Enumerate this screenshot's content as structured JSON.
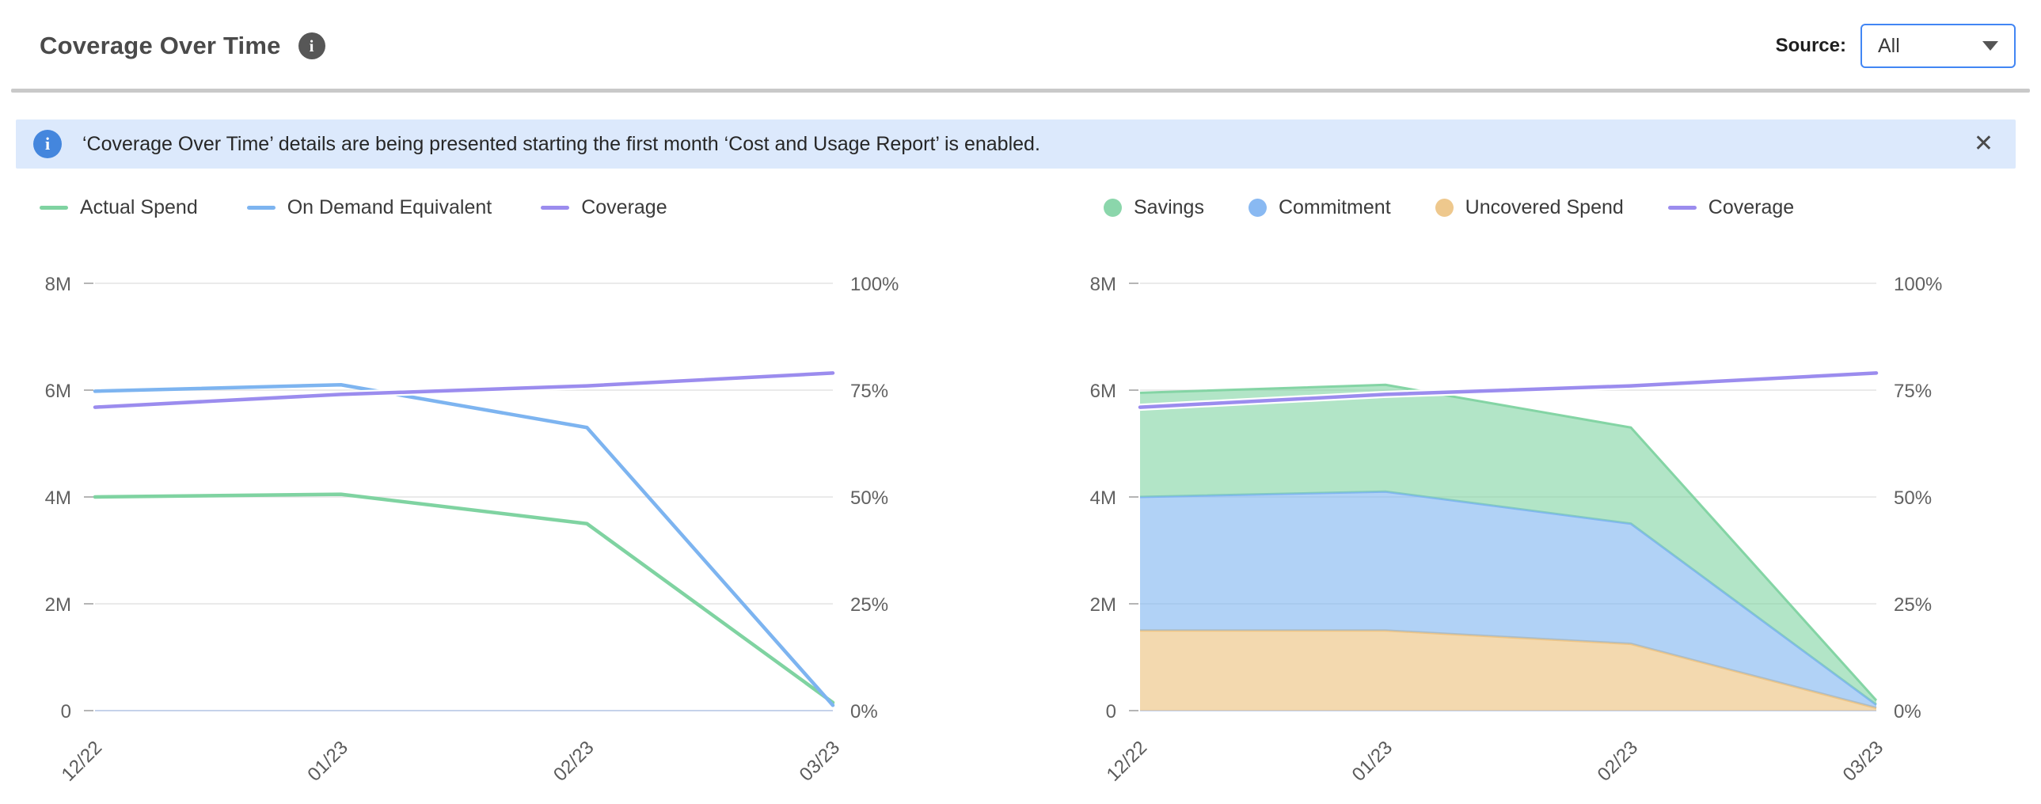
{
  "header": {
    "title": "Coverage Over Time",
    "source_label": "Source:",
    "source_value": "All"
  },
  "icons": {
    "info": "i",
    "close": "✕",
    "caret": "caret-down"
  },
  "banner": {
    "text": "‘Coverage Over Time’ details are being presented starting the first month ‘Cost and Usage Report’ is enabled."
  },
  "colors": {
    "green": "#7fd3a1",
    "blue": "#7db4f0",
    "orange": "#edc484",
    "purple": "#9b8cee",
    "banner_bg": "#dce9fc",
    "banner_icon": "#4486dd",
    "select_border": "#4286f4",
    "gridline": "#e3e3e3",
    "axis_line": "#c5d2ea",
    "axis_text": "#616161"
  },
  "chart_data": [
    {
      "type": "line",
      "title": "",
      "categories": [
        "12/22",
        "01/23",
        "02/23",
        "03/23"
      ],
      "series": [
        {
          "name": "Actual Spend",
          "color": "#7fd3a1",
          "axis": "left",
          "values": [
            4.0,
            4.05,
            3.5,
            0.15
          ]
        },
        {
          "name": "On Demand Equivalent",
          "color": "#7db4f0",
          "axis": "left",
          "values": [
            5.98,
            6.1,
            5.3,
            0.1
          ]
        },
        {
          "name": "Coverage",
          "color": "#9b8cee",
          "axis": "right",
          "values": [
            71,
            74,
            76,
            79
          ],
          "halo": true
        }
      ],
      "y_left": {
        "min": 0,
        "max": 8,
        "ticks": [
          "8M",
          "6M",
          "4M",
          "2M",
          "0"
        ]
      },
      "y_right": {
        "min": 0,
        "max": 100,
        "ticks": [
          "100%",
          "75%",
          "50%",
          "25%",
          "0%"
        ]
      },
      "grid": true,
      "legend_position": "top",
      "legend": [
        {
          "label": "Actual Spend",
          "color": "#7fd3a1",
          "swatch": "dash"
        },
        {
          "label": "On Demand Equivalent",
          "color": "#7db4f0",
          "swatch": "dash"
        },
        {
          "label": "Coverage",
          "color": "#9b8cee",
          "swatch": "dash"
        }
      ]
    },
    {
      "type": "area",
      "stacked": true,
      "title": "",
      "categories": [
        "12/22",
        "01/23",
        "02/23",
        "03/23"
      ],
      "series": [
        {
          "name": "Uncovered Spend",
          "color": "#edc484",
          "stacked": true,
          "fill_opacity": 0.65,
          "values": [
            1.5,
            1.5,
            1.25,
            0.05
          ]
        },
        {
          "name": "Commitment",
          "color": "#7db4f0",
          "stacked": true,
          "fill_opacity": 0.6,
          "values": [
            2.5,
            2.6,
            2.25,
            0.06
          ]
        },
        {
          "name": "Savings",
          "color": "#7fd3a1",
          "stacked": true,
          "fill_opacity": 0.6,
          "values": [
            1.95,
            2.0,
            1.8,
            0.08
          ]
        },
        {
          "name": "Coverage",
          "color": "#9b8cee",
          "axis": "right",
          "values": [
            71,
            74,
            76,
            79
          ],
          "halo": true
        }
      ],
      "y_left": {
        "min": 0,
        "max": 8,
        "ticks": [
          "8M",
          "6M",
          "4M",
          "2M",
          "0"
        ]
      },
      "y_right": {
        "min": 0,
        "max": 100,
        "ticks": [
          "100%",
          "75%",
          "50%",
          "25%",
          "0%"
        ]
      },
      "grid": true,
      "legend_position": "top",
      "legend": [
        {
          "label": "Savings",
          "color": "#8bd6ab",
          "swatch": "dot"
        },
        {
          "label": "Commitment",
          "color": "#89b9f2",
          "swatch": "dot"
        },
        {
          "label": "Uncovered Spend",
          "color": "#eec88d",
          "swatch": "dot"
        },
        {
          "label": "Coverage",
          "color": "#9b8cee",
          "swatch": "dash"
        }
      ]
    }
  ]
}
